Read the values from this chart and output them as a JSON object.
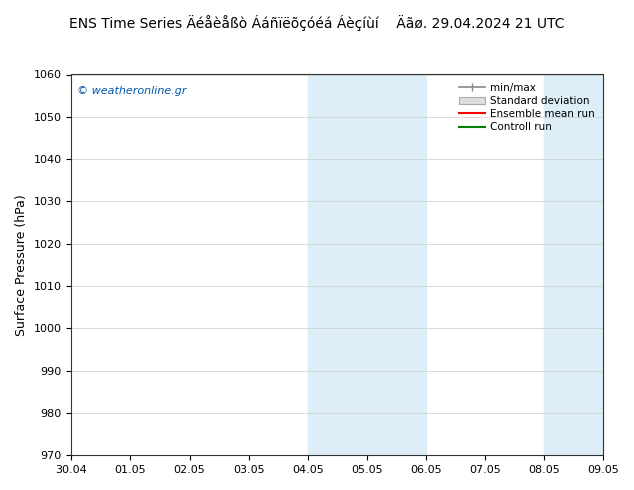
{
  "title": "ENS Time Series Äéåèåßò Ááñïëõçóéá Áèçíùí    Äãø. 29.04.2024 21 UTC",
  "ylabel": "Surface Pressure (hPa)",
  "ylim": [
    970,
    1060
  ],
  "yticks": [
    970,
    980,
    990,
    1000,
    1010,
    1020,
    1030,
    1040,
    1050,
    1060
  ],
  "xtick_labels": [
    "30.04",
    "01.05",
    "02.05",
    "03.05",
    "04.05",
    "05.05",
    "06.05",
    "07.05",
    "08.05",
    "09.05"
  ],
  "shaded_regions": [
    {
      "xstart": 4,
      "xend": 6,
      "color": "#ddeef8"
    },
    {
      "xstart": 8,
      "xend": 10,
      "color": "#ddeef8"
    }
  ],
  "watermark": "© weatheronline.gr",
  "background_color": "#ffffff",
  "plot_bg_color": "#ffffff",
  "legend_items": [
    {
      "label": "min/max",
      "color": "#888888",
      "style": "minmax"
    },
    {
      "label": "Standard deviation",
      "color": "#aaaaaa",
      "style": "band"
    },
    {
      "label": "Ensemble mean run",
      "color": "#ff0000",
      "style": "line"
    },
    {
      "label": "Controll run",
      "color": "#008000",
      "style": "line"
    }
  ],
  "title_fontsize": 10,
  "tick_fontsize": 8,
  "ylabel_fontsize": 9
}
